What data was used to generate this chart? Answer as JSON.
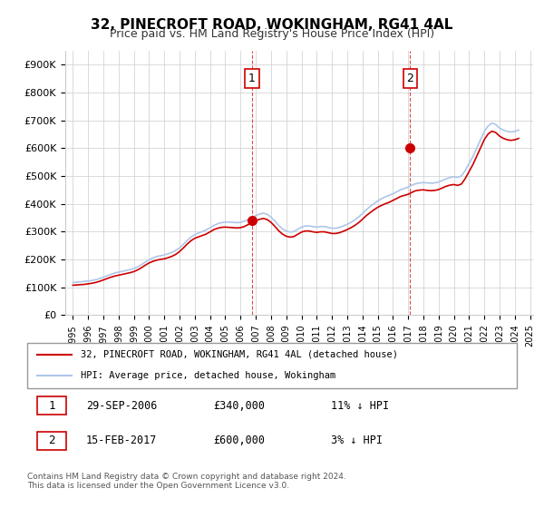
{
  "title": "32, PINECROFT ROAD, WOKINGHAM, RG41 4AL",
  "subtitle": "Price paid vs. HM Land Registry's House Price Index (HPI)",
  "background_color": "#ffffff",
  "plot_bg_color": "#ffffff",
  "ylabel_color": "#000000",
  "grid_color": "#cccccc",
  "hpi_color": "#aec6e8",
  "price_color": "#cc0000",
  "ylim": [
    0,
    950000
  ],
  "yticks": [
    0,
    100000,
    200000,
    300000,
    400000,
    500000,
    600000,
    700000,
    800000,
    900000
  ],
  "ytick_labels": [
    "£0",
    "£100K",
    "£200K",
    "£300K",
    "£400K",
    "£500K",
    "£600K",
    "£700K",
    "£800K",
    "£900K"
  ],
  "purchase1": {
    "date_num": 2006.75,
    "price": 340000,
    "label": "1"
  },
  "purchase2": {
    "date_num": 2017.12,
    "price": 600000,
    "label": "2"
  },
  "legend_line1": "32, PINECROFT ROAD, WOKINGHAM, RG41 4AL (detached house)",
  "legend_line2": "HPI: Average price, detached house, Wokingham",
  "table_row1": [
    "1",
    "29-SEP-2006",
    "£340,000",
    "11% ↓ HPI"
  ],
  "table_row2": [
    "2",
    "15-FEB-2017",
    "£600,000",
    "3% ↓ HPI"
  ],
  "footer": "Contains HM Land Registry data © Crown copyright and database right 2024.\nThis data is licensed under the Open Government Licence v3.0.",
  "hpi_data": {
    "years": [
      1995.0,
      1995.25,
      1995.5,
      1995.75,
      1996.0,
      1996.25,
      1996.5,
      1996.75,
      1997.0,
      1997.25,
      1997.5,
      1997.75,
      1998.0,
      1998.25,
      1998.5,
      1998.75,
      1999.0,
      1999.25,
      1999.5,
      1999.75,
      2000.0,
      2000.25,
      2000.5,
      2000.75,
      2001.0,
      2001.25,
      2001.5,
      2001.75,
      2002.0,
      2002.25,
      2002.5,
      2002.75,
      2003.0,
      2003.25,
      2003.5,
      2003.75,
      2004.0,
      2004.25,
      2004.5,
      2004.75,
      2005.0,
      2005.25,
      2005.5,
      2005.75,
      2006.0,
      2006.25,
      2006.5,
      2006.75,
      2007.0,
      2007.25,
      2007.5,
      2007.75,
      2008.0,
      2008.25,
      2008.5,
      2008.75,
      2009.0,
      2009.25,
      2009.5,
      2009.75,
      2010.0,
      2010.25,
      2010.5,
      2010.75,
      2011.0,
      2011.25,
      2011.5,
      2011.75,
      2012.0,
      2012.25,
      2012.5,
      2012.75,
      2013.0,
      2013.25,
      2013.5,
      2013.75,
      2014.0,
      2014.25,
      2014.5,
      2014.75,
      2015.0,
      2015.25,
      2015.5,
      2015.75,
      2016.0,
      2016.25,
      2016.5,
      2016.75,
      2017.0,
      2017.25,
      2017.5,
      2017.75,
      2018.0,
      2018.25,
      2018.5,
      2018.75,
      2019.0,
      2019.25,
      2019.5,
      2019.75,
      2020.0,
      2020.25,
      2020.5,
      2020.75,
      2021.0,
      2021.25,
      2021.5,
      2021.75,
      2022.0,
      2022.25,
      2022.5,
      2022.75,
      2023.0,
      2023.25,
      2023.5,
      2023.75,
      2024.0,
      2024.25
    ],
    "values": [
      117000,
      118000,
      119000,
      121000,
      122000,
      124000,
      127000,
      131000,
      136000,
      141000,
      146000,
      151000,
      154000,
      157000,
      160000,
      163000,
      167000,
      173000,
      181000,
      190000,
      198000,
      205000,
      210000,
      213000,
      216000,
      220000,
      225000,
      232000,
      241000,
      254000,
      268000,
      280000,
      289000,
      295000,
      300000,
      306000,
      314000,
      322000,
      328000,
      332000,
      334000,
      334000,
      333000,
      332000,
      333000,
      337000,
      343000,
      350000,
      357000,
      363000,
      366000,
      362000,
      352000,
      338000,
      322000,
      310000,
      302000,
      298000,
      300000,
      308000,
      316000,
      320000,
      320000,
      318000,
      316000,
      318000,
      318000,
      315000,
      312000,
      312000,
      315000,
      320000,
      326000,
      333000,
      342000,
      352000,
      365000,
      378000,
      390000,
      400000,
      410000,
      418000,
      425000,
      430000,
      436000,
      443000,
      450000,
      455000,
      460000,
      467000,
      472000,
      475000,
      476000,
      475000,
      474000,
      475000,
      478000,
      484000,
      490000,
      494000,
      497000,
      495000,
      500000,
      520000,
      545000,
      570000,
      600000,
      630000,
      660000,
      680000,
      690000,
      685000,
      672000,
      665000,
      660000,
      658000,
      660000,
      665000
    ]
  },
  "price_data": {
    "years": [
      1995.0,
      1995.25,
      1995.5,
      1995.75,
      1996.0,
      1996.25,
      1996.5,
      1996.75,
      1997.0,
      1997.25,
      1997.5,
      1997.75,
      1998.0,
      1998.25,
      1998.5,
      1998.75,
      1999.0,
      1999.25,
      1999.5,
      1999.75,
      2000.0,
      2000.25,
      2000.5,
      2000.75,
      2001.0,
      2001.25,
      2001.5,
      2001.75,
      2002.0,
      2002.25,
      2002.5,
      2002.75,
      2003.0,
      2003.25,
      2003.5,
      2003.75,
      2004.0,
      2004.25,
      2004.5,
      2004.75,
      2005.0,
      2005.25,
      2005.5,
      2005.75,
      2006.0,
      2006.25,
      2006.5,
      2006.75,
      2007.0,
      2007.25,
      2007.5,
      2007.75,
      2008.0,
      2008.25,
      2008.5,
      2008.75,
      2009.0,
      2009.25,
      2009.5,
      2009.75,
      2010.0,
      2010.25,
      2010.5,
      2010.75,
      2011.0,
      2011.25,
      2011.5,
      2011.75,
      2012.0,
      2012.25,
      2012.5,
      2012.75,
      2013.0,
      2013.25,
      2013.5,
      2013.75,
      2014.0,
      2014.25,
      2014.5,
      2014.75,
      2015.0,
      2015.25,
      2015.5,
      2015.75,
      2016.0,
      2016.25,
      2016.5,
      2016.75,
      2017.0,
      2017.25,
      2017.5,
      2017.75,
      2018.0,
      2018.25,
      2018.5,
      2018.75,
      2019.0,
      2019.25,
      2019.5,
      2019.75,
      2020.0,
      2020.25,
      2020.5,
      2020.75,
      2021.0,
      2021.25,
      2021.5,
      2021.75,
      2022.0,
      2022.25,
      2022.5,
      2022.75,
      2023.0,
      2023.25,
      2023.5,
      2023.75,
      2024.0,
      2024.25
    ],
    "values": [
      107000,
      108000,
      109000,
      110000,
      112000,
      114000,
      117000,
      121000,
      126000,
      131000,
      136000,
      140000,
      143000,
      146000,
      149000,
      152000,
      156000,
      162000,
      170000,
      179000,
      187000,
      193000,
      197000,
      200000,
      202000,
      206000,
      211000,
      218000,
      228000,
      241000,
      255000,
      267000,
      276000,
      281000,
      286000,
      291000,
      299000,
      307000,
      312000,
      315000,
      316000,
      315000,
      314000,
      313000,
      314000,
      318000,
      325000,
      332000,
      339000,
      344000,
      347000,
      343000,
      333000,
      319000,
      303000,
      291000,
      283000,
      280000,
      282000,
      290000,
      298000,
      302000,
      302000,
      299000,
      297000,
      299000,
      299000,
      296000,
      293000,
      293000,
      296000,
      301000,
      307000,
      314000,
      322000,
      332000,
      344000,
      357000,
      368000,
      378000,
      387000,
      394000,
      400000,
      405000,
      412000,
      419000,
      426000,
      430000,
      434000,
      441000,
      447000,
      449000,
      450000,
      448000,
      447000,
      448000,
      451000,
      457000,
      463000,
      467000,
      469000,
      466000,
      471000,
      491000,
      516000,
      541000,
      571000,
      601000,
      631000,
      651000,
      661000,
      656000,
      643000,
      635000,
      630000,
      628000,
      630000,
      635000
    ]
  }
}
